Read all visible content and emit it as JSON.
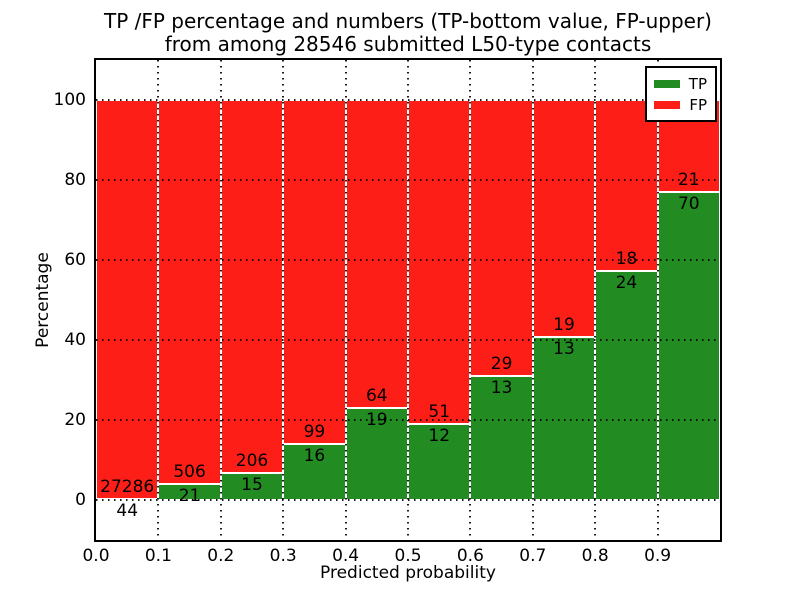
{
  "chart_data": {
    "type": "bar",
    "stacked": true,
    "normalized_to_100_percent": true,
    "title_line1": "TP /FP percentage and numbers (TP-bottom value, FP-upper)",
    "title_line2": "from among 28546 submitted L50-type contacts",
    "xlabel": "Predicted probability",
    "ylabel": "Percentage",
    "xlim": [
      0.0,
      1.0
    ],
    "ylim": [
      -10,
      110
    ],
    "grid": "dotted",
    "xtick_labels": [
      "0.0",
      "0.1",
      "0.2",
      "0.3",
      "0.4",
      "0.5",
      "0.6",
      "0.7",
      "0.8",
      "0.9"
    ],
    "ytick_values": [
      0,
      20,
      40,
      60,
      80,
      100
    ],
    "colors": {
      "tp": "#228b22",
      "fp": "#fd1f17",
      "bar_edge": "#ffffff"
    },
    "legend": {
      "position": "upper-right",
      "entries": [
        {
          "label": "TP",
          "color": "#228b22"
        },
        {
          "label": "FP",
          "color": "#fd1f17"
        }
      ]
    },
    "categories": [
      "0.0-0.1",
      "0.1-0.2",
      "0.2-0.3",
      "0.3-0.4",
      "0.4-0.5",
      "0.5-0.6",
      "0.6-0.7",
      "0.7-0.8",
      "0.8-0.9",
      "0.9-1.0"
    ],
    "series": [
      {
        "name": "TP",
        "counts": [
          44,
          21,
          15,
          16,
          19,
          12,
          13,
          13,
          24,
          70
        ]
      },
      {
        "name": "FP",
        "counts": [
          27286,
          506,
          206,
          99,
          64,
          51,
          29,
          19,
          18,
          21
        ]
      }
    ],
    "bars": [
      {
        "bin_start": 0.0,
        "bin_end": 0.1,
        "tp_count": 44,
        "fp_count": 27286,
        "tp_percent": 0.16,
        "fp_percent": 99.84
      },
      {
        "bin_start": 0.1,
        "bin_end": 0.2,
        "tp_count": 21,
        "fp_count": 506,
        "tp_percent": 3.98,
        "fp_percent": 96.02
      },
      {
        "bin_start": 0.2,
        "bin_end": 0.3,
        "tp_count": 15,
        "fp_count": 206,
        "tp_percent": 6.79,
        "fp_percent": 93.21
      },
      {
        "bin_start": 0.3,
        "bin_end": 0.4,
        "tp_count": 16,
        "fp_count": 99,
        "tp_percent": 13.91,
        "fp_percent": 86.09
      },
      {
        "bin_start": 0.4,
        "bin_end": 0.5,
        "tp_count": 19,
        "fp_count": 64,
        "tp_percent": 22.89,
        "fp_percent": 77.11
      },
      {
        "bin_start": 0.5,
        "bin_end": 0.6,
        "tp_count": 12,
        "fp_count": 51,
        "tp_percent": 19.05,
        "fp_percent": 80.95
      },
      {
        "bin_start": 0.6,
        "bin_end": 0.7,
        "tp_count": 13,
        "fp_count": 29,
        "tp_percent": 30.95,
        "fp_percent": 69.05
      },
      {
        "bin_start": 0.7,
        "bin_end": 0.8,
        "tp_count": 13,
        "fp_count": 19,
        "tp_percent": 40.63,
        "fp_percent": 59.37
      },
      {
        "bin_start": 0.8,
        "bin_end": 0.9,
        "tp_count": 24,
        "fp_count": 18,
        "tp_percent": 57.14,
        "fp_percent": 42.86
      },
      {
        "bin_start": 0.9,
        "bin_end": 1.0,
        "tp_count": 70,
        "fp_count": 21,
        "tp_percent": 76.92,
        "fp_percent": 23.08
      }
    ]
  }
}
